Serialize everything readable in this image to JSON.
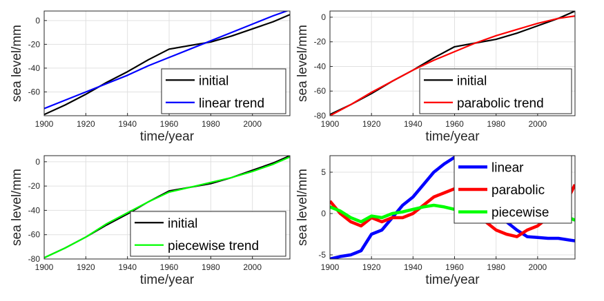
{
  "chart_data": [
    {
      "type": "line",
      "xlabel": "time/year",
      "ylabel": "sea level/mm",
      "xlim": [
        1900,
        2018
      ],
      "ylim": [
        -80,
        8
      ],
      "xticks": [
        "1900",
        "1920",
        "1940",
        "1960",
        "1980",
        "2000"
      ],
      "yticks": [
        "-60",
        "-40",
        "-20",
        "0"
      ],
      "grid": true,
      "legend": "bottom-right",
      "x": [
        1900,
        1910,
        1920,
        1930,
        1940,
        1950,
        1960,
        1970,
        1980,
        1990,
        2000,
        2010,
        2018
      ],
      "series": [
        {
          "name": "initial",
          "color": "#000000",
          "values": [
            -79,
            -71,
            -62,
            -52,
            -43,
            -33,
            -24,
            -21,
            -18,
            -13,
            -7,
            -1,
            5
          ]
        },
        {
          "name": "linear trend",
          "color": "#0000ff",
          "values": [
            -74,
            -67,
            -60,
            -53,
            -46,
            -38,
            -31,
            -24,
            -17,
            -10,
            -3,
            4,
            9
          ]
        }
      ]
    },
    {
      "type": "line",
      "xlabel": "time/year",
      "ylabel": "sea level/mm",
      "xlim": [
        1900,
        2018
      ],
      "ylim": [
        -80,
        5
      ],
      "xticks": [
        "1900",
        "1920",
        "1940",
        "1960",
        "1980",
        "2000"
      ],
      "yticks": [
        "-80",
        "-60",
        "-40",
        "-20",
        "0"
      ],
      "grid": true,
      "legend": "bottom-right",
      "x": [
        1900,
        1910,
        1920,
        1930,
        1940,
        1950,
        1960,
        1970,
        1980,
        1990,
        2000,
        2010,
        2018
      ],
      "series": [
        {
          "name": "initial",
          "color": "#000000",
          "values": [
            -79,
            -71,
            -62,
            -52,
            -43,
            -33,
            -24,
            -21,
            -18,
            -13,
            -7,
            -1,
            5
          ]
        },
        {
          "name": "parabolic trend",
          "color": "#ff0000",
          "values": [
            -80,
            -71,
            -61,
            -52,
            -43,
            -35,
            -28,
            -21,
            -15,
            -10,
            -5,
            -1,
            1
          ]
        }
      ]
    },
    {
      "type": "line",
      "xlabel": "time/year",
      "ylabel": "sea level/mm",
      "xlim": [
        1900,
        2018
      ],
      "ylim": [
        -80,
        5
      ],
      "xticks": [
        "1900",
        "1920",
        "1940",
        "1960",
        "1980",
        "2000"
      ],
      "yticks": [
        "-80",
        "-60",
        "-40",
        "-20",
        "0"
      ],
      "grid": true,
      "legend": "bottom-right",
      "x": [
        1900,
        1910,
        1920,
        1930,
        1940,
        1950,
        1960,
        1970,
        1980,
        1990,
        2000,
        2010,
        2018
      ],
      "series": [
        {
          "name": "initial",
          "color": "#000000",
          "values": [
            -79,
            -71,
            -62,
            -52,
            -43,
            -33,
            -24,
            -21,
            -18,
            -13,
            -7,
            -1,
            5
          ]
        },
        {
          "name": "piecewise trend",
          "color": "#00ff00",
          "values": [
            -79,
            -71,
            -62,
            -51,
            -42,
            -33,
            -25,
            -21,
            -17,
            -13,
            -8,
            -2,
            4
          ]
        }
      ]
    },
    {
      "type": "line",
      "xlabel": "time/year",
      "ylabel": "sea level/mm",
      "xlim": [
        1900,
        2018
      ],
      "ylim": [
        -5.5,
        7
      ],
      "xticks": [
        "1900",
        "1920",
        "1940",
        "1960",
        "1980",
        "2000"
      ],
      "yticks": [
        "-5",
        "0",
        "5"
      ],
      "grid": true,
      "legend": "top-right",
      "x": [
        1900,
        1905,
        1910,
        1915,
        1920,
        1925,
        1930,
        1935,
        1940,
        1945,
        1950,
        1955,
        1960,
        1965,
        1970,
        1975,
        1980,
        1985,
        1990,
        1995,
        2000,
        2005,
        2010,
        2015,
        2018
      ],
      "series": [
        {
          "name": "linear",
          "color": "#0000ff",
          "values": [
            -5.5,
            -5.2,
            -5,
            -4.5,
            -2.5,
            -2,
            -0.5,
            1,
            2,
            3.5,
            5,
            6,
            6.8,
            6.5,
            5,
            3,
            1,
            -1,
            -2,
            -2.8,
            -2.9,
            -3,
            -3,
            -3.2,
            -3.3
          ]
        },
        {
          "name": "parabolic",
          "color": "#ff0000",
          "values": [
            1.5,
            0,
            -1,
            -1.5,
            -0.5,
            -1,
            -0.5,
            -0.5,
            0,
            1,
            2,
            2.5,
            3,
            2.5,
            1,
            -1,
            -2,
            -2.5,
            -2.8,
            -2,
            -1.5,
            -0.5,
            0.8,
            2,
            3.5
          ]
        },
        {
          "name": "piecewise",
          "color": "#00ff00",
          "values": [
            0.8,
            0.3,
            -0.5,
            -1,
            -0.3,
            -0.5,
            0,
            0.2,
            0.5,
            0.8,
            1,
            0.8,
            0.5,
            -0.5,
            -0.8,
            -0.3,
            0,
            0.2,
            -0.3,
            -0.5,
            -0.2,
            0,
            0.3,
            -0.5,
            -0.8
          ]
        }
      ]
    }
  ]
}
